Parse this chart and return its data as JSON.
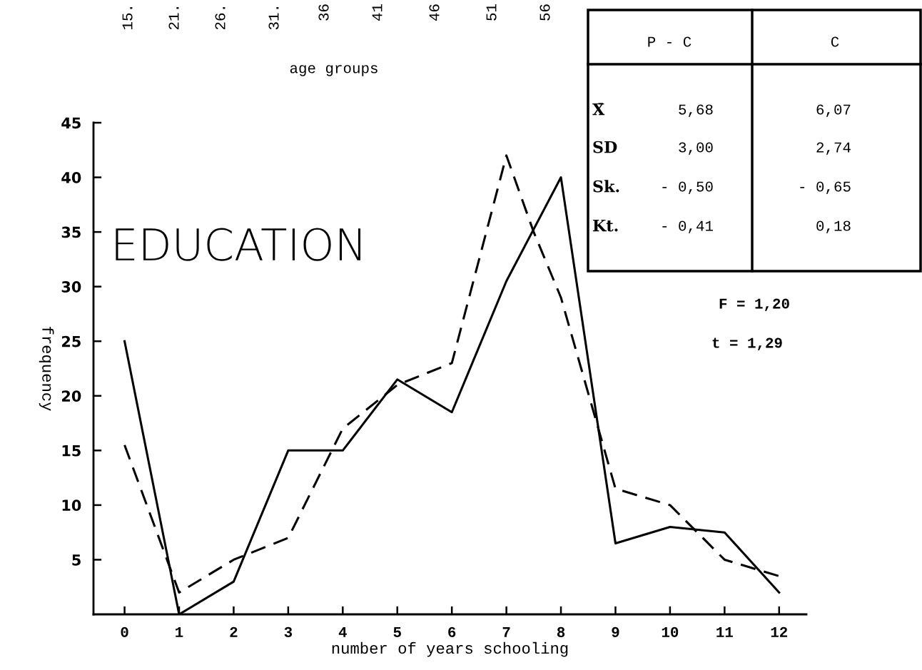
{
  "chart_data": {
    "type": "line",
    "title": "EDUCATION",
    "xlabel": "number of years schooling",
    "ylabel": "frequency",
    "series": [
      {
        "color": "#000000",
        "line_style": "solid",
        "x": [
          0,
          1,
          2,
          3,
          4,
          5,
          6,
          7,
          8,
          9,
          10,
          11,
          12
        ],
        "values": [
          25,
          0,
          3,
          15,
          15,
          21.5,
          18.5,
          30.5,
          40,
          6.5,
          8,
          7.5,
          2
        ]
      },
      {
        "color": "#000000",
        "line_style": "dashed",
        "x": [
          0,
          1,
          2,
          3,
          4,
          5,
          6,
          7,
          7.5,
          8,
          9,
          10,
          11,
          12
        ],
        "values": [
          15.5,
          2,
          5,
          7,
          17,
          21,
          23,
          42,
          35,
          29,
          11.5,
          10,
          5,
          3.5
        ]
      }
    ],
    "xlim": [
      -0.57,
      12.5
    ],
    "xticks": [
      0,
      1,
      2,
      3,
      4,
      5,
      6,
      7,
      8,
      9,
      10,
      11,
      12
    ],
    "ylim": [
      0,
      45
    ],
    "yticks": [
      5,
      10,
      15,
      20,
      25,
      30,
      35,
      40,
      45
    ],
    "grid": false,
    "legend": false,
    "marker": "none",
    "annotations": [
      "15.",
      "21.",
      "26.",
      "31.",
      "36",
      "41",
      "46",
      "51",
      "56",
      "age groups",
      "P - C",
      "C",
      "X̄",
      "5,68",
      "6,07",
      "SD",
      "3,00",
      "2,74",
      "Sk.",
      "- 0,50",
      "- 0,65",
      "Kt.",
      "- 0,41",
      "0,18",
      "F = 1,20",
      "t = 1,29"
    ]
  }
}
